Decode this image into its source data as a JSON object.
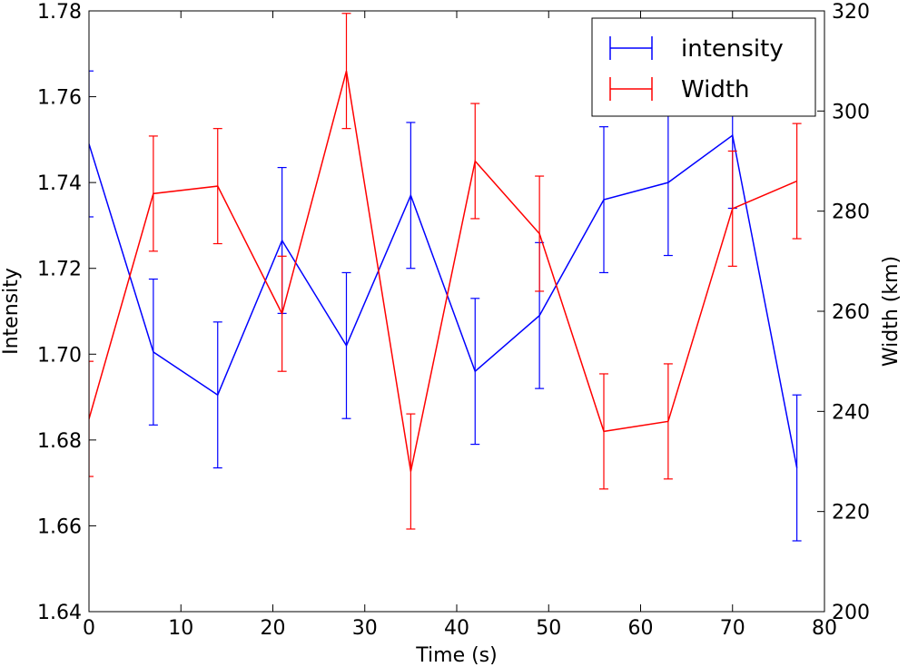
{
  "chart_data": {
    "type": "line",
    "xlabel": "Time (s)",
    "ylabel": "Intensity",
    "y2label": "Width (km)",
    "xlim": [
      0,
      80
    ],
    "ylim": [
      1.64,
      1.78
    ],
    "y2lim": [
      200,
      320
    ],
    "x_ticks": [
      "0",
      "10",
      "20",
      "30",
      "40",
      "50",
      "60",
      "70",
      "80"
    ],
    "y_ticks": [
      "1.64",
      "1.66",
      "1.68",
      "1.70",
      "1.72",
      "1.74",
      "1.76",
      "1.78"
    ],
    "y2_ticks": [
      "200",
      "220",
      "240",
      "260",
      "280",
      "300",
      "320"
    ],
    "x_tick_values": [
      0,
      10,
      20,
      30,
      40,
      50,
      60,
      70,
      80
    ],
    "y_tick_values": [
      1.64,
      1.66,
      1.68,
      1.7,
      1.72,
      1.74,
      1.76,
      1.78
    ],
    "y2_tick_values": [
      200,
      220,
      240,
      260,
      280,
      300,
      320
    ],
    "legend_position": "top-right",
    "grid": false,
    "series": [
      {
        "name": "intensity",
        "axis": "left",
        "color": "#0000ff",
        "x": [
          0,
          7,
          14,
          21,
          28,
          35,
          42,
          49,
          56,
          63,
          70,
          77
        ],
        "values": [
          1.749,
          1.7005,
          1.6905,
          1.7265,
          1.702,
          1.737,
          1.696,
          1.709,
          1.736,
          1.74,
          1.751,
          1.6735
        ],
        "errors": [
          0.017,
          0.017,
          0.017,
          0.017,
          0.017,
          0.017,
          0.017,
          0.017,
          0.017,
          0.017,
          0.017,
          0.017
        ]
      },
      {
        "name": "Width",
        "axis": "right",
        "color": "#ff0000",
        "x": [
          0,
          7,
          14,
          21,
          28,
          35,
          42,
          49,
          56,
          63,
          70,
          77
        ],
        "values": [
          238.5,
          283.5,
          285,
          259.5,
          308,
          228,
          290,
          275.5,
          236,
          238,
          280.5,
          286
        ],
        "errors": [
          11.5,
          11.5,
          11.5,
          11.5,
          11.5,
          11.5,
          11.5,
          11.5,
          11.5,
          11.5,
          11.5,
          11.5
        ]
      }
    ]
  }
}
